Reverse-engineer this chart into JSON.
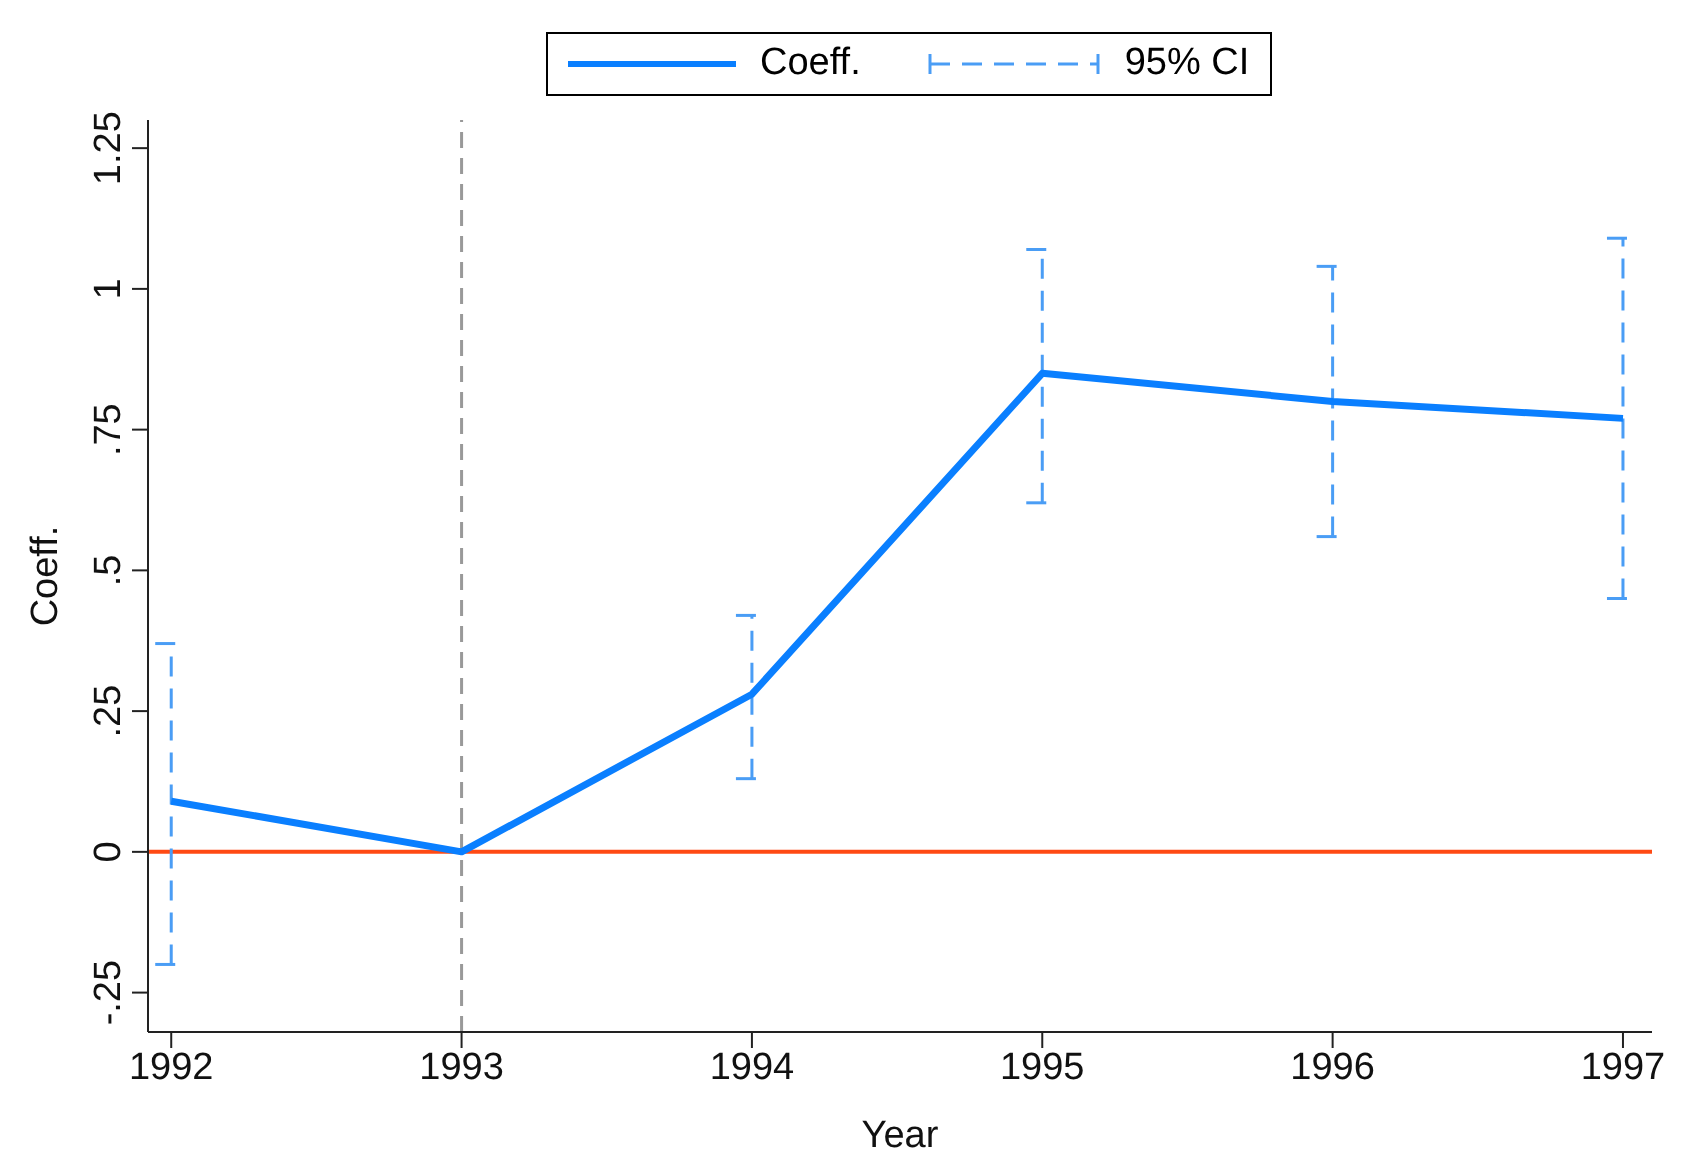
{
  "chart_data": {
    "type": "line",
    "xlabel": "Year",
    "ylabel": "Coeff.",
    "x": [
      1992,
      1993,
      1994,
      1995,
      1996,
      1997
    ],
    "series": [
      {
        "name": "Coeff.",
        "color": "#0a7fff",
        "values": [
          0.09,
          0,
          0.28,
          0.85,
          0.8,
          0.77
        ],
        "errors": [
          [
            -0.2,
            0.37
          ],
          null,
          [
            0.13,
            0.42
          ],
          [
            0.62,
            1.07
          ],
          [
            0.56,
            1.04
          ],
          [
            0.45,
            1.09
          ]
        ]
      }
    ],
    "annotations": [
      "95% CI"
    ],
    "xlim": [
      1991.92,
      1997.1
    ],
    "xticks": [
      1992,
      1993,
      1994,
      1995,
      1996,
      1997
    ],
    "ylim": [
      -0.32,
      1.3
    ],
    "yticks": [
      {
        "value": -0.25,
        "label": "-.25"
      },
      {
        "value": 0,
        "label": "0"
      },
      {
        "value": 0.25,
        "label": ".25"
      },
      {
        "value": 0.5,
        "label": ".5"
      },
      {
        "value": 0.75,
        "label": ".75"
      },
      {
        "value": 1,
        "label": "1"
      },
      {
        "value": 1.25,
        "label": "1.25"
      }
    ],
    "ref_lines": [
      {
        "axis": "x",
        "value": 1993,
        "color": "#999999",
        "line_style": "dashed"
      },
      {
        "axis": "y",
        "value": 0,
        "color": "#ff4a14",
        "line_style": "solid"
      }
    ],
    "legend": "top",
    "marker": "none",
    "line_style": "solid"
  }
}
